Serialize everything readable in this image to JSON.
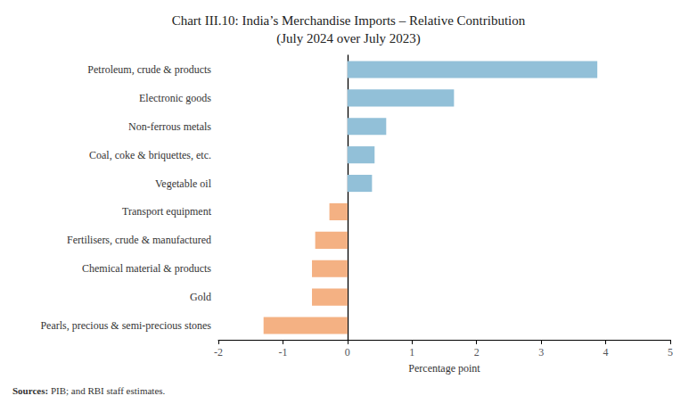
{
  "chart_data": {
    "type": "bar",
    "orientation": "horizontal",
    "title": "Chart III.10: India’s Merchandise Imports – Relative Contribution\n(July 2024 over July 2023)",
    "categories": [
      "Pearls, precious & semi-precious stones",
      "Gold",
      "Chemical material & products",
      "Fertilisers, crude & manufactured",
      "Transport equipment",
      "Vegetable oil",
      "Coal, coke & briquettes, etc.",
      "Non-ferrous metals",
      "Electronic goods",
      "Petroleum, crude & products"
    ],
    "values": [
      -1.3,
      -0.55,
      -0.55,
      -0.5,
      -0.28,
      0.38,
      0.42,
      0.6,
      1.65,
      3.87
    ],
    "colors": [
      "#f4b183",
      "#f4b183",
      "#f4b183",
      "#f4b183",
      "#f4b183",
      "#92c0d8",
      "#92c0d8",
      "#92c0d8",
      "#92c0d8",
      "#92c0d8"
    ],
    "xlabel": "Percentage point",
    "xlim": [
      -2,
      5
    ],
    "xticks": [
      -2,
      -1,
      0,
      1,
      2,
      3,
      4,
      5
    ],
    "grid": false,
    "annotations": [
      {
        "text": "Sources:",
        "bold": true
      },
      {
        "text": "PIB; and RBI staff estimates."
      }
    ]
  }
}
